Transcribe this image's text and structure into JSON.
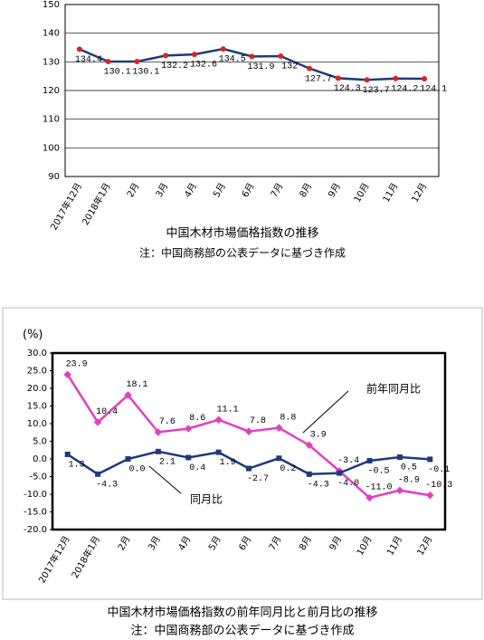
{
  "chart_data": [
    {
      "type": "line",
      "title": "中国木材市場価格指数の推移",
      "subtitle": "注：中国商務部の公表データに基づき作成",
      "categories": [
        "2017年12月",
        "2018年1月",
        "2月",
        "3月",
        "4月",
        "5月",
        "6月",
        "7月",
        "8月",
        "9月",
        "10月",
        "11月",
        "12月"
      ],
      "series": [
        {
          "name": "中国木材市場価格指数",
          "color": "#1f3a7a",
          "marker_color": "#e02020",
          "values": [
            134.4,
            130.1,
            130.1,
            132.2,
            132.6,
            134.5,
            131.9,
            132.0,
            127.7,
            124.3,
            123.7,
            124.2,
            124.1
          ]
        }
      ],
      "ylim": [
        90,
        150
      ],
      "yticks": [
        90,
        100,
        110,
        120,
        130,
        140,
        150
      ],
      "grid": true
    },
    {
      "type": "line",
      "title": "中国木材市場価格指数の前年同月比と前月比の推移",
      "subtitle": "注：中国商務部の公表データに基づき作成",
      "y_label": "(%)",
      "annotations": [
        "前年同月比",
        "同月比"
      ],
      "categories": [
        "2017年12月",
        "2018年1月",
        "2月",
        "3月",
        "4月",
        "5月",
        "6月",
        "7月",
        "8月",
        "9月",
        "10月",
        "11月",
        "12月"
      ],
      "series": [
        {
          "name": "前年同月比",
          "color": "#e040c0",
          "values": [
            23.9,
            10.4,
            18.1,
            7.6,
            8.6,
            11.1,
            7.8,
            8.8,
            3.9,
            -3.4,
            -11.0,
            -8.9,
            -10.3
          ],
          "value_labels": [
            "23.9",
            "10.4",
            "18.1",
            "7.6",
            "8.6",
            "11.1",
            "7.8",
            "8.8",
            "3.9",
            "-3.4",
            "-11.0",
            "-8.9",
            "-10.3"
          ]
        },
        {
          "name": "同月比",
          "color": "#1f3a7a",
          "values": [
            1.3,
            -4.3,
            0.0,
            2.1,
            0.4,
            1.9,
            -2.7,
            0.2,
            -4.3,
            -4.0,
            -0.5,
            0.5,
            -0.1
          ],
          "value_labels": [
            "1.3",
            "-4.3",
            "0.0",
            "2.1",
            "0.4",
            "1.9",
            "-2.7",
            "0.2",
            "-4.3",
            "-4.0",
            "-0.5",
            "0.5",
            "-0.1"
          ]
        }
      ],
      "ylim": [
        -20,
        30
      ],
      "yticks": [
        {
          "value": -20,
          "label": "-20.0"
        },
        {
          "value": -15,
          "label": "-15.0"
        },
        {
          "value": -10,
          "label": "-10.0"
        },
        {
          "value": -5,
          "label": "-5.0"
        },
        {
          "value": 0,
          "label": "0.0"
        },
        {
          "value": 5,
          "label": "5.0"
        },
        {
          "value": 10,
          "label": "10.0"
        },
        {
          "value": 15,
          "label": "15.0"
        },
        {
          "value": 20,
          "label": "20.0"
        },
        {
          "value": 25,
          "label": "25.0"
        },
        {
          "value": 30,
          "label": "30.0"
        }
      ],
      "grid": false
    }
  ]
}
